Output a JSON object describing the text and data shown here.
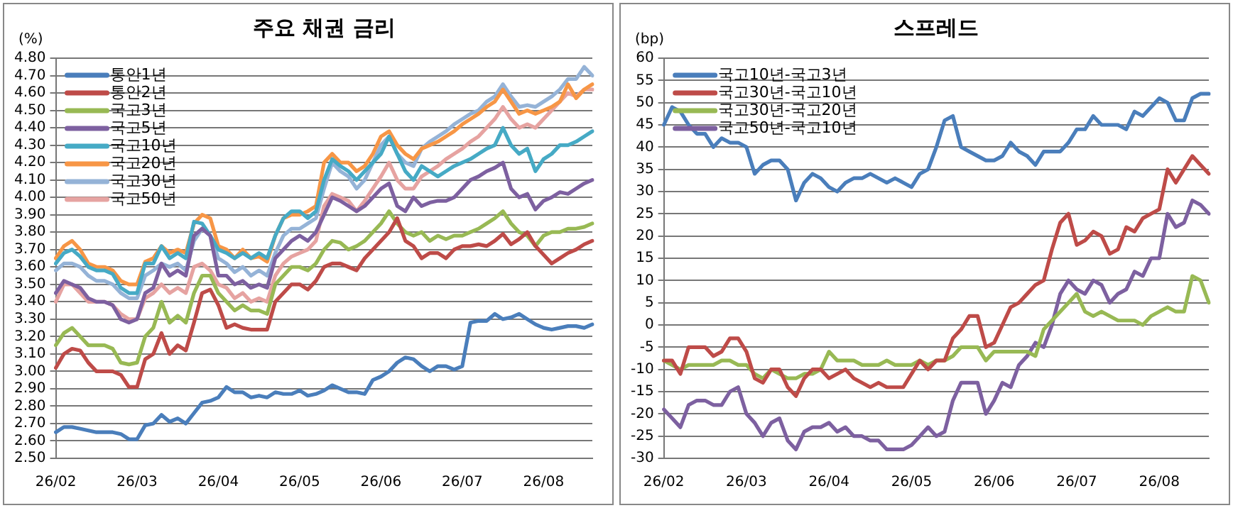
{
  "chart_data": [
    {
      "type": "line",
      "title": "주요 채권 금리",
      "ylabel": "(%)",
      "grid": "y",
      "legend": "top left",
      "marker": "none",
      "line_style": "solid",
      "categories": [
        "26/02",
        null,
        null,
        null,
        null,
        null,
        null,
        null,
        null,
        null,
        "26/03",
        null,
        null,
        null,
        null,
        null,
        null,
        null,
        null,
        null,
        "26/04",
        null,
        null,
        null,
        null,
        null,
        null,
        null,
        null,
        null,
        "26/05",
        null,
        null,
        null,
        null,
        null,
        null,
        null,
        null,
        null,
        "26/06",
        null,
        null,
        null,
        null,
        null,
        null,
        null,
        null,
        null,
        "26/07",
        null,
        null,
        null,
        null,
        null,
        null,
        null,
        null,
        null,
        "26/08",
        null,
        null,
        null,
        null,
        null,
        null
      ],
      "ylim": [
        2.5,
        4.8
      ],
      "yticks": [
        {
          "value": 2.5,
          "label": "2.50"
        },
        {
          "value": 2.6,
          "label": "2.60"
        },
        {
          "value": 2.7,
          "label": "2.70"
        },
        {
          "value": 2.8,
          "label": "2.80"
        },
        {
          "value": 2.9,
          "label": "2.90"
        },
        {
          "value": 3.0,
          "label": "3.00"
        },
        {
          "value": 3.1,
          "label": "3.10"
        },
        {
          "value": 3.2,
          "label": "3.20"
        },
        {
          "value": 3.3,
          "label": "3.30"
        },
        {
          "value": 3.4,
          "label": "3.40"
        },
        {
          "value": 3.5,
          "label": "3.50"
        },
        {
          "value": 3.6,
          "label": "3.60"
        },
        {
          "value": 3.7,
          "label": "3.70"
        },
        {
          "value": 3.8,
          "label": "3.80"
        },
        {
          "value": 3.9,
          "label": "3.90"
        },
        {
          "value": 4.0,
          "label": "4.00"
        },
        {
          "value": 4.1,
          "label": "4.10"
        },
        {
          "value": 4.2,
          "label": "4.20"
        },
        {
          "value": 4.3,
          "label": "4.30"
        },
        {
          "value": 4.4,
          "label": "4.40"
        },
        {
          "value": 4.5,
          "label": "4.50"
        },
        {
          "value": 4.6,
          "label": "4.60"
        },
        {
          "value": 4.7,
          "label": "4.70"
        },
        {
          "value": 4.8,
          "label": "4.80"
        }
      ],
      "series": [
        {
          "name": "통안1년",
          "color": "#4a7ebb",
          "values": [
            2.65,
            2.68,
            2.68,
            2.67,
            2.66,
            2.65,
            2.65,
            2.65,
            2.64,
            2.61,
            2.61,
            2.69,
            2.7,
            2.75,
            2.71,
            2.73,
            2.7,
            2.76,
            2.82,
            2.83,
            2.85,
            2.91,
            2.88,
            2.88,
            2.85,
            2.86,
            2.85,
            2.88,
            2.87,
            2.87,
            2.89,
            2.86,
            2.87,
            2.89,
            2.92,
            2.9,
            2.88,
            2.88,
            2.87,
            2.95,
            2.97,
            3.0,
            3.05,
            3.08,
            3.07,
            3.03,
            3.0,
            3.03,
            3.03,
            3.01,
            3.03,
            3.28,
            3.29,
            3.29,
            3.33,
            3.3,
            3.31,
            3.33,
            3.3,
            3.27,
            3.25,
            3.24,
            3.25,
            3.26,
            3.26,
            3.25,
            3.27
          ]
        },
        {
          "name": "통안2년",
          "color": "#be4b48",
          "values": [
            3.02,
            3.1,
            3.13,
            3.12,
            3.05,
            3.0,
            3.0,
            3.0,
            2.98,
            2.91,
            2.91,
            3.07,
            3.1,
            3.22,
            3.1,
            3.15,
            3.12,
            3.28,
            3.45,
            3.47,
            3.38,
            3.25,
            3.27,
            3.25,
            3.24,
            3.24,
            3.24,
            3.4,
            3.45,
            3.5,
            3.5,
            3.47,
            3.52,
            3.6,
            3.62,
            3.62,
            3.6,
            3.58,
            3.65,
            3.7,
            3.75,
            3.8,
            3.88,
            3.75,
            3.72,
            3.65,
            3.68,
            3.68,
            3.65,
            3.7,
            3.72,
            3.72,
            3.73,
            3.72,
            3.75,
            3.79,
            3.73,
            3.76,
            3.8,
            3.72,
            3.67,
            3.62,
            3.65,
            3.68,
            3.7,
            3.73,
            3.75
          ]
        },
        {
          "name": "국고3년",
          "color": "#98b954",
          "values": [
            3.15,
            3.22,
            3.25,
            3.2,
            3.15,
            3.15,
            3.15,
            3.13,
            3.05,
            3.04,
            3.05,
            3.2,
            3.25,
            3.4,
            3.28,
            3.32,
            3.28,
            3.45,
            3.55,
            3.55,
            3.45,
            3.4,
            3.35,
            3.38,
            3.35,
            3.35,
            3.33,
            3.5,
            3.55,
            3.6,
            3.6,
            3.58,
            3.62,
            3.7,
            3.75,
            3.74,
            3.7,
            3.72,
            3.75,
            3.8,
            3.85,
            3.92,
            3.85,
            3.8,
            3.78,
            3.8,
            3.75,
            3.78,
            3.76,
            3.78,
            3.78,
            3.8,
            3.82,
            3.85,
            3.88,
            3.92,
            3.85,
            3.8,
            3.78,
            3.72,
            3.78,
            3.8,
            3.8,
            3.82,
            3.82,
            3.83,
            3.85
          ]
        },
        {
          "name": "국고5년",
          "color": "#7d60a0",
          "values": [
            3.45,
            3.52,
            3.5,
            3.48,
            3.42,
            3.4,
            3.4,
            3.38,
            3.3,
            3.28,
            3.3,
            3.45,
            3.48,
            3.62,
            3.55,
            3.58,
            3.55,
            3.78,
            3.82,
            3.78,
            3.55,
            3.55,
            3.5,
            3.52,
            3.48,
            3.5,
            3.48,
            3.65,
            3.7,
            3.75,
            3.78,
            3.75,
            3.8,
            3.9,
            4.0,
            3.98,
            3.95,
            3.92,
            3.95,
            4.0,
            4.05,
            4.08,
            3.95,
            3.92,
            4.0,
            3.95,
            3.97,
            3.98,
            3.98,
            4.0,
            4.05,
            4.1,
            4.12,
            4.15,
            4.17,
            4.2,
            4.05,
            4.0,
            4.02,
            3.93,
            3.98,
            4.0,
            4.03,
            4.02,
            4.05,
            4.08,
            4.1
          ]
        },
        {
          "name": "국고10년",
          "color": "#46aac5",
          "values": [
            3.62,
            3.68,
            3.7,
            3.66,
            3.6,
            3.58,
            3.58,
            3.56,
            3.48,
            3.45,
            3.45,
            3.62,
            3.62,
            3.72,
            3.65,
            3.68,
            3.65,
            3.86,
            3.85,
            3.78,
            3.7,
            3.68,
            3.65,
            3.68,
            3.65,
            3.68,
            3.65,
            3.78,
            3.88,
            3.92,
            3.92,
            3.88,
            3.92,
            4.1,
            4.22,
            4.18,
            4.15,
            4.1,
            4.15,
            4.2,
            4.25,
            4.35,
            4.25,
            4.15,
            4.1,
            4.18,
            4.15,
            4.12,
            4.15,
            4.18,
            4.2,
            4.22,
            4.25,
            4.28,
            4.3,
            4.4,
            4.3,
            4.25,
            4.28,
            4.15,
            4.22,
            4.25,
            4.3,
            4.3,
            4.32,
            4.35,
            4.38
          ]
        },
        {
          "name": "국고20년",
          "color": "#f79646",
          "values": [
            3.65,
            3.72,
            3.75,
            3.7,
            3.62,
            3.6,
            3.6,
            3.58,
            3.52,
            3.5,
            3.5,
            3.63,
            3.65,
            3.72,
            3.68,
            3.7,
            3.68,
            3.85,
            3.9,
            3.88,
            3.72,
            3.7,
            3.65,
            3.7,
            3.65,
            3.66,
            3.63,
            3.78,
            3.88,
            3.9,
            3.9,
            3.92,
            3.95,
            4.2,
            4.25,
            4.2,
            4.2,
            4.15,
            4.18,
            4.25,
            4.35,
            4.38,
            4.3,
            4.25,
            4.22,
            4.28,
            4.3,
            4.32,
            4.35,
            4.38,
            4.42,
            4.45,
            4.48,
            4.52,
            4.55,
            4.62,
            4.55,
            4.48,
            4.5,
            4.48,
            4.5,
            4.52,
            4.55,
            4.65,
            4.57,
            4.62,
            4.65
          ]
        },
        {
          "name": "국고30년",
          "color": "#95b3d7",
          "values": [
            3.58,
            3.62,
            3.62,
            3.6,
            3.55,
            3.52,
            3.52,
            3.5,
            3.45,
            3.42,
            3.42,
            3.55,
            3.58,
            3.62,
            3.6,
            3.62,
            3.58,
            3.75,
            3.82,
            3.78,
            3.65,
            3.62,
            3.57,
            3.6,
            3.55,
            3.58,
            3.55,
            3.68,
            3.78,
            3.82,
            3.82,
            3.85,
            3.88,
            4.05,
            4.2,
            4.15,
            4.12,
            4.05,
            4.1,
            4.2,
            4.3,
            4.35,
            4.25,
            4.2,
            4.18,
            4.28,
            4.32,
            4.35,
            4.38,
            4.42,
            4.45,
            4.48,
            4.5,
            4.55,
            4.58,
            4.65,
            4.58,
            4.52,
            4.53,
            4.52,
            4.55,
            4.58,
            4.62,
            4.68,
            4.68,
            4.75,
            4.7
          ]
        },
        {
          "name": "국고50년",
          "color": "#e6a3a1",
          "values": [
            3.4,
            3.5,
            3.5,
            3.45,
            3.4,
            3.4,
            3.4,
            3.38,
            3.33,
            3.3,
            3.3,
            3.42,
            3.45,
            3.5,
            3.45,
            3.48,
            3.45,
            3.6,
            3.62,
            3.58,
            3.5,
            3.48,
            3.42,
            3.45,
            3.4,
            3.42,
            3.4,
            3.55,
            3.62,
            3.66,
            3.68,
            3.7,
            3.75,
            3.95,
            4.02,
            4.0,
            3.98,
            3.92,
            3.98,
            4.05,
            4.12,
            4.2,
            4.1,
            4.05,
            4.05,
            4.12,
            4.15,
            4.18,
            4.22,
            4.25,
            4.28,
            4.32,
            4.35,
            4.4,
            4.45,
            4.52,
            4.45,
            4.4,
            4.42,
            4.4,
            4.45,
            4.5,
            4.55,
            4.6,
            4.58,
            4.62,
            4.62
          ]
        }
      ]
    },
    {
      "type": "line",
      "title": "스프레드",
      "ylabel": "(bp)",
      "grid": "y",
      "legend": "top left",
      "marker": "none",
      "line_style": "solid",
      "categories": [
        "26/02",
        null,
        null,
        null,
        null,
        null,
        null,
        null,
        null,
        null,
        "26/03",
        null,
        null,
        null,
        null,
        null,
        null,
        null,
        null,
        null,
        "26/04",
        null,
        null,
        null,
        null,
        null,
        null,
        null,
        null,
        null,
        "26/05",
        null,
        null,
        null,
        null,
        null,
        null,
        null,
        null,
        null,
        "26/06",
        null,
        null,
        null,
        null,
        null,
        null,
        null,
        null,
        null,
        "26/07",
        null,
        null,
        null,
        null,
        null,
        null,
        null,
        null,
        null,
        "26/08",
        null,
        null,
        null,
        null,
        null,
        null
      ],
      "ylim": [
        -30,
        60
      ],
      "yticks": [
        -30,
        -25,
        -20,
        -15,
        -10,
        -5,
        0,
        5,
        10,
        15,
        20,
        25,
        30,
        35,
        40,
        45,
        50,
        55,
        60
      ],
      "series": [
        {
          "name": "국고10년-국고3년",
          "color": "#4a7ebb",
          "values": [
            45,
            49,
            48,
            45,
            43,
            43,
            40,
            42,
            41,
            41,
            40,
            34,
            36,
            37,
            37,
            35,
            28,
            32,
            34,
            33,
            31,
            30,
            32,
            33,
            33,
            34,
            33,
            32,
            33,
            32,
            31,
            34,
            35,
            40,
            46,
            47,
            40,
            39,
            38,
            37,
            37,
            38,
            41,
            39,
            38,
            36,
            39,
            39,
            39,
            41,
            44,
            44,
            47,
            45,
            45,
            45,
            44,
            48,
            47,
            49,
            51,
            50,
            46,
            46,
            51,
            52,
            52
          ]
        },
        {
          "name": "국고30년-국고10년",
          "color": "#be4b48",
          "values": [
            -8,
            -8,
            -11,
            -5,
            -5,
            -5,
            -7,
            -6,
            -3,
            -3,
            -6,
            -12,
            -13,
            -10,
            -10,
            -14,
            -16,
            -12,
            -10,
            -10,
            -12,
            -11,
            -10,
            -12,
            -13,
            -14,
            -13,
            -14,
            -14,
            -14,
            -11,
            -8,
            -10,
            -8,
            -8,
            -3,
            -1,
            2,
            2,
            -5,
            -4,
            0,
            4,
            5,
            7,
            9,
            10,
            17,
            23,
            25,
            18,
            19,
            21,
            20,
            16,
            17,
            22,
            21,
            24,
            25,
            26,
            35,
            32,
            35,
            38,
            36,
            34
          ]
        },
        {
          "name": "국고30년-국고20년",
          "color": "#98b954",
          "values": [
            -8,
            -9,
            -10,
            -9,
            -9,
            -9,
            -9,
            -8,
            -8,
            -9,
            -9,
            -11,
            -12,
            -10,
            -11,
            -12,
            -12,
            -11,
            -11,
            -10,
            -6,
            -8,
            -8,
            -8,
            -9,
            -9,
            -9,
            -8,
            -9,
            -9,
            -9,
            -8,
            -9,
            -8,
            -8,
            -7,
            -5,
            -5,
            -5,
            -8,
            -6,
            -6,
            -6,
            -6,
            -6,
            -7,
            -1,
            1,
            3,
            5,
            7,
            3,
            2,
            3,
            2,
            1,
            1,
            1,
            0,
            2,
            3,
            4,
            3,
            3,
            11,
            10,
            5
          ]
        },
        {
          "name": "국고50년-국고10년",
          "color": "#7d60a0",
          "values": [
            -19,
            -21,
            -23,
            -18,
            -17,
            -17,
            -18,
            -18,
            -15,
            -14,
            -20,
            -22,
            -25,
            -22,
            -21,
            -26,
            -28,
            -24,
            -23,
            -23,
            -22,
            -24,
            -23,
            -25,
            -25,
            -26,
            -26,
            -28,
            -28,
            -28,
            -27,
            -25,
            -23,
            -25,
            -24,
            -17,
            -13,
            -13,
            -13,
            -20,
            -17,
            -13,
            -14,
            -9,
            -7,
            -4,
            -5,
            0,
            7,
            10,
            8,
            7,
            10,
            9,
            5,
            7,
            8,
            12,
            11,
            15,
            15,
            25,
            22,
            23,
            28,
            27,
            25
          ]
        }
      ]
    }
  ]
}
